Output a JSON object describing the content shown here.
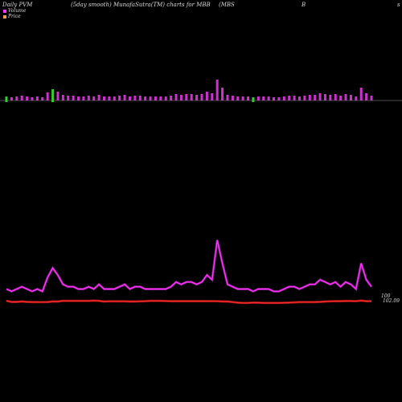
{
  "header": {
    "t1": "Daily PVM",
    "t2": "(5day smooth) MunafaSutra(TM) charts for MBB",
    "t3": "(MBS",
    "t4": "B",
    "t5": "s"
  },
  "legend": [
    {
      "label": "Volume",
      "color": "#ff33ff"
    },
    {
      "label": "Price",
      "color": "#ff9966"
    }
  ],
  "labels": {
    "vol_label": "100",
    "price_label": "102.09"
  },
  "colors": {
    "volume": "#cc33cc",
    "volume_line": "#ff33ff",
    "price_line": "#ff2a2a",
    "baseline": "#999999",
    "down_bar": "#33cc33"
  },
  "chart_data": {
    "type": "bar",
    "series": [
      {
        "name": "Volume",
        "values": [
          5,
          4,
          5,
          6,
          5,
          4,
          5,
          4,
          10,
          14,
          11,
          7,
          6,
          6,
          5,
          5,
          6,
          5,
          7,
          5,
          5,
          5,
          6,
          7,
          5,
          6,
          6,
          5,
          5,
          5,
          5,
          5,
          6,
          8,
          7,
          8,
          8,
          7,
          8,
          11,
          9,
          26,
          16,
          7,
          6,
          5,
          5,
          5,
          4,
          5,
          5,
          5,
          4,
          4,
          5,
          6,
          6,
          5,
          6,
          7,
          7,
          9,
          8,
          7,
          8,
          6,
          8,
          7,
          5,
          16,
          9,
          6
        ]
      },
      {
        "name": "Price",
        "values": [
          2.2,
          1.6,
          1.6,
          1.8,
          1.6,
          1.5,
          1.5,
          1.5,
          1.5,
          1.8,
          1.8,
          2.2,
          2.2,
          2.2,
          2.2,
          2.2,
          2.2,
          2.3,
          2.2,
          1.8,
          1.9,
          1.9,
          1.9,
          1.9,
          1.8,
          1.8,
          1.9,
          2.0,
          2.2,
          2.2,
          2.2,
          2.1,
          2.0,
          2.0,
          2.0,
          2.0,
          2.0,
          2.0,
          2.0,
          2.0,
          2.0,
          2.0,
          1.8,
          1.8,
          1.5,
          1.2,
          1.0,
          1.0,
          1.2,
          1.2,
          1.0,
          1.0,
          1.0,
          1.0,
          1.1,
          1.2,
          1.3,
          1.5,
          1.5,
          1.5,
          1.5,
          1.6,
          1.8,
          1.9,
          2.0,
          2.0,
          2.1,
          2.1,
          2.0,
          2.3,
          2.0,
          2.0
        ]
      }
    ],
    "down_bars": [
      0,
      9,
      48
    ]
  }
}
